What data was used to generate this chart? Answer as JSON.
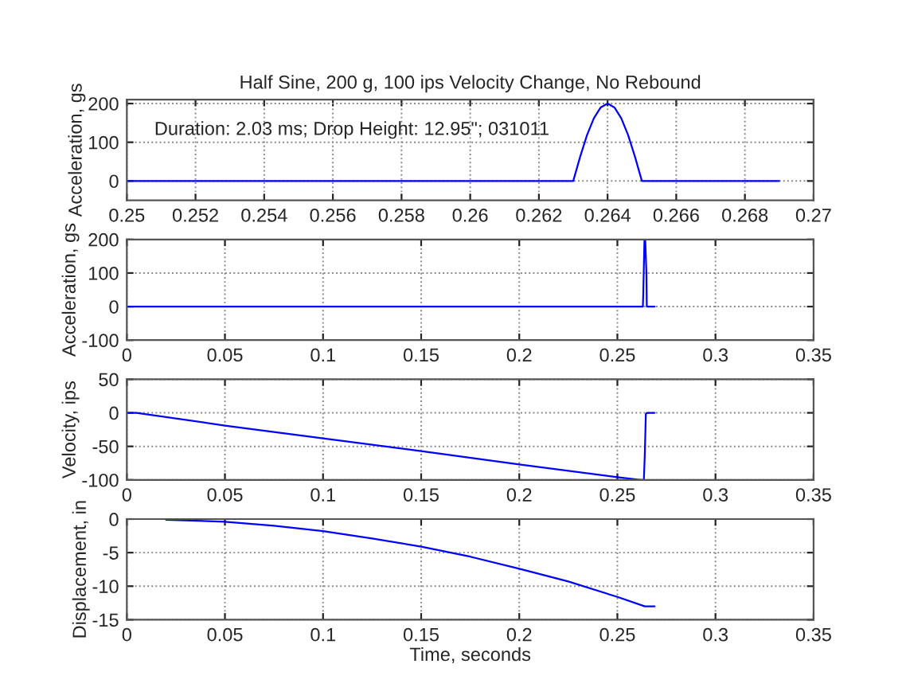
{
  "chart_data": [
    {
      "type": "line",
      "title": "Half Sine, 200 g, 100 ips Velocity Change, No Rebound",
      "ylabel": "Acceleration, gs",
      "annotations": [
        "Duration: 2.03 ms; Drop Height: 12.95\"; 031011"
      ],
      "series": [
        {
          "color": "#0000ff",
          "x": [
            0.25,
            0.263,
            0.2632,
            0.2634,
            0.2636,
            0.2638,
            0.264,
            0.2642,
            0.2644,
            0.2646,
            0.2648,
            0.265,
            0.269
          ],
          "values": [
            0,
            0,
            62,
            118,
            162,
            190,
            200,
            190,
            162,
            118,
            62,
            0,
            0
          ]
        }
      ],
      "xlim": [
        0.25,
        0.27
      ],
      "xticks": [
        0.25,
        0.252,
        0.254,
        0.256,
        0.258,
        0.26,
        0.262,
        0.264,
        0.266,
        0.268,
        0.27
      ],
      "ylim": [
        -50,
        210
      ],
      "yticks": [
        0,
        100,
        200
      ],
      "grid": true
    },
    {
      "type": "line",
      "ylabel": "Acceleration, gs",
      "series": [
        {
          "color": "#0000ff",
          "x": [
            0,
            0.263,
            0.2632,
            0.2638,
            0.2642,
            0.2648,
            0.265,
            0.269
          ],
          "values": [
            0,
            0,
            40,
            200,
            200,
            100,
            0,
            0
          ]
        }
      ],
      "xlim": [
        0,
        0.35
      ],
      "xticks": [
        0,
        0.05,
        0.1,
        0.15,
        0.2,
        0.25,
        0.3,
        0.35
      ],
      "ylim": [
        -100,
        200
      ],
      "yticks": [
        -100,
        0,
        100,
        200
      ],
      "grid": true
    },
    {
      "type": "line",
      "ylabel": "Velocity, ips",
      "series": [
        {
          "color": "#0000ff",
          "x": [
            0,
            0.005,
            0.05,
            0.1,
            0.15,
            0.2,
            0.25,
            0.262,
            0.2635,
            0.264,
            0.2645,
            0.265,
            0.269
          ],
          "values": [
            0,
            0,
            -19,
            -38,
            -57,
            -77,
            -96,
            -100,
            -100,
            -60,
            -2,
            0,
            0
          ]
        }
      ],
      "xlim": [
        0,
        0.35
      ],
      "xticks": [
        0,
        0.05,
        0.1,
        0.15,
        0.2,
        0.25,
        0.3,
        0.35
      ],
      "ylim": [
        -100,
        50
      ],
      "yticks": [
        -100,
        -50,
        0,
        50
      ],
      "grid": true
    },
    {
      "type": "line",
      "xlabel": "Time, seconds",
      "ylabel": "Displacement, in",
      "series": [
        {
          "color": "#0000ff",
          "x": [
            0.02,
            0.05,
            0.075,
            0.1,
            0.125,
            0.15,
            0.175,
            0.2,
            0.225,
            0.25,
            0.264,
            0.269
          ],
          "values": [
            -0.1,
            -0.4,
            -1.0,
            -1.8,
            -2.9,
            -4.1,
            -5.6,
            -7.4,
            -9.3,
            -11.6,
            -13,
            -13
          ]
        }
      ],
      "xlim": [
        0,
        0.35
      ],
      "xticks": [
        0,
        0.05,
        0.1,
        0.15,
        0.2,
        0.25,
        0.3,
        0.35
      ],
      "ylim": [
        -15,
        0
      ],
      "yticks": [
        -15,
        -10,
        -5,
        0
      ],
      "grid": true
    }
  ]
}
